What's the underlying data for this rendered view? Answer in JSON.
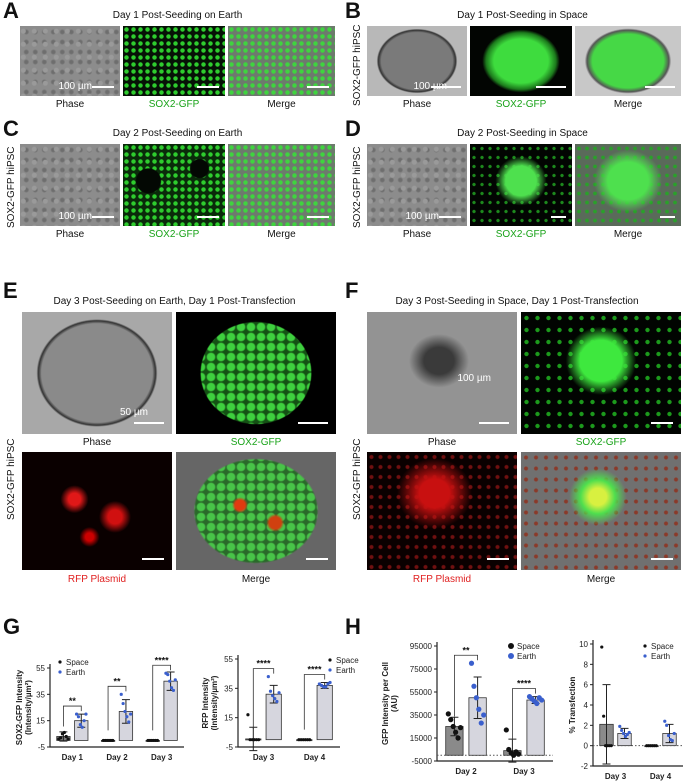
{
  "panels": {
    "A": {
      "letter": "A",
      "title": "Day 1 Post-Seeding on Earth",
      "scale": "100 µm",
      "captions": [
        "Phase",
        "SOX2-GFP",
        "Merge"
      ]
    },
    "B": {
      "letter": "B",
      "title": "Day 1 Post-Seeding in Space",
      "scale": "100 µm",
      "side": "SOX2-GFP hiPSC",
      "captions": [
        "Phase",
        "SOX2-GFP",
        "Merge"
      ]
    },
    "C": {
      "letter": "C",
      "title": "Day 2 Post-Seeding on Earth",
      "scale": "100 µm",
      "side": "SOX2-GFP hiPSC",
      "captions": [
        "Phase",
        "SOX2-GFP",
        "Merge"
      ]
    },
    "D": {
      "letter": "D",
      "title": "Day 2 Post-Seeding in Space",
      "scale": "100 µm",
      "side": "SOX2-GFP hiPSC",
      "captions": [
        "Phase",
        "SOX2-GFP",
        "Merge"
      ]
    },
    "E": {
      "letter": "E",
      "title": "Day 3 Post-Seeding on Earth, Day 1 Post-Transfection",
      "scale": "50 µm",
      "side": "SOX2-GFP hiPSC",
      "captions": [
        "Phase",
        "SOX2-GFP",
        "RFP Plasmid",
        "Merge"
      ]
    },
    "F": {
      "letter": "F",
      "title": "Day 3 Post-Seeding in Space, Day 1 Post-Transfection",
      "scale": "100 µm",
      "side": "SOX2-GFP hiPSC",
      "captions": [
        "Phase",
        "SOX2-GFP",
        "RFP Plasmid",
        "Merge"
      ]
    },
    "G": {
      "letter": "G"
    },
    "H": {
      "letter": "H"
    }
  },
  "colors": {
    "space_point": "#111111",
    "earth_point": "#3a5fcd",
    "gfp": "#1aa31a",
    "rfp": "#e02020"
  },
  "chart_data": [
    {
      "type": "bar",
      "ylabel": "SOX2-GFP Intensity (Intensity/µm²)",
      "ylim": [
        -5,
        55
      ],
      "yticks": [
        -5,
        15,
        35,
        55
      ],
      "categories": [
        "Day 1",
        "Day 2",
        "Day 3"
      ],
      "legend": "top-left",
      "series": [
        {
          "name": "Space",
          "values": [
            3,
            0,
            0
          ],
          "err": [
            3.5,
            0,
            0
          ],
          "points": [
            [
              1,
              2,
              5,
              6,
              3,
              1
            ],
            [
              0,
              0,
              0,
              0,
              0,
              0
            ],
            [
              0,
              0,
              0,
              0,
              0,
              0
            ]
          ]
        },
        {
          "name": "Earth",
          "values": [
            15,
            22,
            45
          ],
          "err": [
            5,
            9,
            7
          ],
          "points": [
            [
              20,
              18,
              12,
              10,
              15,
              20
            ],
            [
              35,
              28,
              22,
              18,
              14,
              20
            ],
            [
              51,
              50,
              45,
              40,
              38,
              46
            ]
          ]
        }
      ],
      "significance": [
        "**",
        "**",
        "****"
      ]
    },
    {
      "type": "bar",
      "ylabel": "RFP Intensity (Intensity/µm²)",
      "ylim": [
        -5,
        55
      ],
      "yticks": [
        -5,
        15,
        35,
        55
      ],
      "categories": [
        "Day 3",
        "Day 4"
      ],
      "legend": "top-right",
      "series": [
        {
          "name": "Space",
          "values": [
            0.5,
            0
          ],
          "err": [
            8,
            0
          ],
          "points": [
            [
              17,
              0,
              0,
              0,
              0,
              0
            ],
            [
              0,
              0,
              0,
              0,
              0,
              0
            ]
          ]
        },
        {
          "name": "Earth",
          "values": [
            31,
            37
          ],
          "err": [
            6,
            2
          ],
          "points": [
            [
              43,
              33,
              30,
              28,
              26,
              32
            ],
            [
              38,
              37,
              36,
              36,
              38,
              39
            ]
          ]
        }
      ],
      "significance": [
        "****",
        "****"
      ]
    },
    {
      "type": "bar",
      "ylabel": "GFP Intensity per Cell (AU)",
      "ylim": [
        -5000,
        95000
      ],
      "yticks": [
        -5000,
        15000,
        35000,
        55000,
        75000,
        95000
      ],
      "categories": [
        "Day 2",
        "Day 3"
      ],
      "legend": "top-right",
      "zero_line": true,
      "series": [
        {
          "name": "Space",
          "values": [
            25000,
            4000
          ],
          "err": [
            8000,
            10000
          ],
          "points": [
            [
              36000,
              31000,
              25000,
              20000,
              15000,
              24000
            ],
            [
              22000,
              5000,
              2000,
              0,
              3000,
              1000
            ]
          ]
        },
        {
          "name": "Earth",
          "values": [
            50000,
            48000
          ],
          "err": [
            18000,
            3000
          ],
          "points": [
            [
              80000,
              60000,
              50000,
              40000,
              28000,
              35000
            ],
            [
              51000,
              49000,
              47000,
              45000,
              50000,
              48000
            ]
          ]
        }
      ],
      "significance": [
        "**",
        "****"
      ]
    },
    {
      "type": "bar",
      "ylabel": "% Transfection",
      "ylim": [
        -2,
        10
      ],
      "yticks": [
        -2,
        0,
        2,
        4,
        6,
        8,
        10
      ],
      "categories": [
        "Day 3",
        "Day 4"
      ],
      "legend": "top-right",
      "zero_line": true,
      "series": [
        {
          "name": "Space",
          "values": [
            2.1,
            0
          ],
          "err": [
            3.9,
            0
          ],
          "points": [
            [
              9.7,
              2.9,
              0,
              0,
              0,
              0
            ],
            [
              0,
              0,
              0,
              0,
              0,
              0
            ]
          ]
        },
        {
          "name": "Earth",
          "values": [
            1.2,
            1.2
          ],
          "err": [
            0.5,
            0.9
          ],
          "points": [
            [
              1.9,
              1.5,
              1.2,
              0.9,
              1.1,
              1.3
            ],
            [
              2.4,
              2.0,
              1.0,
              0.6,
              0.5,
              1.2
            ]
          ]
        }
      ],
      "significance": [
        "",
        ""
      ]
    }
  ]
}
